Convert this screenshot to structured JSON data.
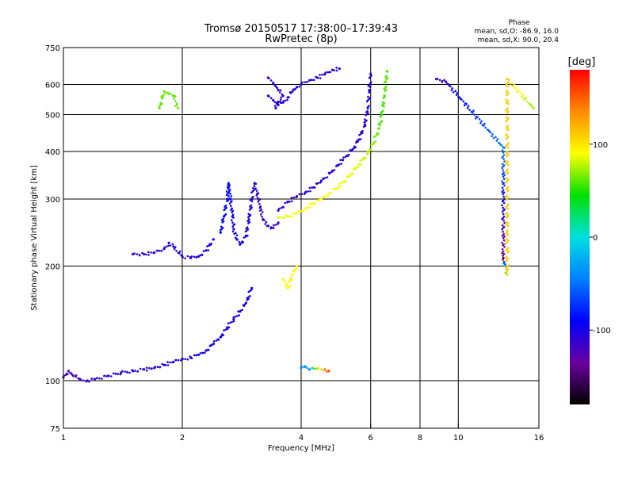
{
  "chart_data": {
    "type": "scatter",
    "title": "Tromsø 20150517 17:38:00–17:39:43",
    "subtitle": "RwPretec (8p)",
    "xlabel": "Frequency [MHz]",
    "ylabel": "Stationary phase Virtual Height [km]",
    "x_scale": "log",
    "y_scale": "log",
    "xlim": [
      1,
      16
    ],
    "ylim": [
      75,
      750
    ],
    "x_ticks": [
      1,
      2,
      4,
      6,
      8,
      10,
      16
    ],
    "x_tick_labels": [
      "1",
      "2",
      "4",
      "6",
      "8",
      "10",
      "16"
    ],
    "y_ticks": [
      75,
      100,
      200,
      300,
      400,
      500,
      600,
      750
    ],
    "y_tick_labels": [
      "75",
      "100",
      "200",
      "300",
      "400",
      "500",
      "600",
      "750"
    ],
    "grid_x": [
      2,
      4,
      6,
      8,
      10,
      16
    ],
    "grid_y": [
      100,
      200,
      300,
      400,
      500,
      600
    ],
    "grid": true,
    "phase_info": {
      "heading": "Phase",
      "line_o": "mean, sd,O: -86.9, 16.0",
      "line_x": "mean, sd,X:  90.0, 20.4"
    },
    "colorbar": {
      "label": "[deg]",
      "min": -180,
      "max": 180,
      "ticks": [
        100,
        0,
        -100
      ],
      "tick_labels": [
        "100",
        "0",
        "-100"
      ],
      "colors": [
        "#ff0000",
        "#ff8c00",
        "#ffff00",
        "#00e000",
        "#00e0e0",
        "#0080ff",
        "#0000ff",
        "#6a00a0",
        "#000000"
      ]
    },
    "series": [
      {
        "points": [
          [
            1.0,
            102,
            -120
          ],
          [
            1.03,
            106,
            -118
          ],
          [
            1.06,
            103,
            -125
          ],
          [
            1.1,
            101,
            -120
          ],
          [
            1.15,
            100,
            -112
          ],
          [
            1.2,
            101,
            -115
          ],
          [
            1.3,
            103,
            -108
          ],
          [
            1.4,
            105,
            -106
          ],
          [
            1.5,
            106,
            -104
          ],
          [
            1.6,
            107,
            -108
          ],
          [
            1.7,
            108,
            -104
          ],
          [
            1.8,
            110,
            -102
          ],
          [
            1.9,
            112,
            -104
          ],
          [
            2.0,
            114,
            -102
          ],
          [
            2.1,
            115,
            -98
          ],
          [
            2.2,
            117,
            -100
          ],
          [
            2.3,
            120,
            -96
          ],
          [
            2.4,
            125,
            -100
          ],
          [
            2.5,
            130,
            -95
          ],
          [
            2.6,
            138,
            -102
          ],
          [
            2.7,
            145,
            -98
          ],
          [
            2.8,
            152,
            -100
          ],
          [
            2.9,
            160,
            -103
          ],
          [
            3.0,
            175,
            -100
          ]
        ]
      },
      {
        "points": [
          [
            1.5,
            215,
            -108
          ],
          [
            1.6,
            215,
            -110
          ],
          [
            1.7,
            217,
            -106
          ],
          [
            1.8,
            222,
            -104
          ],
          [
            1.85,
            230,
            -106
          ],
          [
            1.9,
            225,
            -108
          ],
          [
            2.0,
            212,
            -105
          ],
          [
            2.1,
            210,
            -110
          ],
          [
            2.2,
            212,
            -106
          ],
          [
            2.3,
            220,
            -104
          ],
          [
            2.4,
            235,
            -102
          ]
        ]
      },
      {
        "points": [
          [
            2.5,
            245,
            -90
          ],
          [
            2.55,
            270,
            -88
          ],
          [
            2.6,
            300,
            -86
          ],
          [
            2.62,
            330,
            -85
          ],
          [
            2.65,
            300,
            -92
          ],
          [
            2.68,
            270,
            -95
          ],
          [
            2.7,
            250,
            -96
          ],
          [
            2.75,
            235,
            -94
          ],
          [
            2.8,
            228,
            -95
          ],
          [
            2.9,
            240,
            -100
          ],
          [
            2.95,
            265,
            -102
          ],
          [
            3.0,
            300,
            -104
          ],
          [
            3.05,
            330,
            -108
          ],
          [
            3.1,
            310,
            -104
          ],
          [
            3.15,
            285,
            -110
          ],
          [
            3.2,
            265,
            -112
          ],
          [
            3.3,
            255,
            -110
          ],
          [
            3.4,
            252,
            -112
          ],
          [
            3.5,
            260,
            -110
          ]
        ]
      },
      {
        "points": [
          [
            3.3,
            560,
            -105
          ],
          [
            3.4,
            545,
            -108
          ],
          [
            3.5,
            530,
            -106
          ],
          [
            3.6,
            538,
            -110
          ],
          [
            3.7,
            555,
            -108
          ],
          [
            3.8,
            575,
            -106
          ],
          [
            3.9,
            590,
            -104
          ],
          [
            4.0,
            600,
            -108
          ],
          [
            4.2,
            615,
            -106
          ],
          [
            4.4,
            625,
            -104
          ],
          [
            4.6,
            640,
            -110
          ],
          [
            4.8,
            655,
            -108
          ],
          [
            5.0,
            660,
            -106
          ]
        ]
      },
      {
        "points": [
          [
            3.3,
            625,
            -112
          ],
          [
            3.4,
            605,
            -108
          ],
          [
            3.5,
            580,
            -110
          ],
          [
            3.6,
            560,
            -108
          ],
          [
            3.5,
            540,
            -106
          ],
          [
            3.45,
            520,
            -104
          ]
        ]
      },
      {
        "points": [
          [
            3.5,
            280,
            -108
          ],
          [
            3.7,
            295,
            -110
          ],
          [
            3.9,
            305,
            -112
          ],
          [
            4.1,
            312,
            -108
          ],
          [
            4.3,
            322,
            -110
          ],
          [
            4.5,
            335,
            -106
          ],
          [
            4.8,
            355,
            -108
          ],
          [
            5.1,
            380,
            -106
          ],
          [
            5.4,
            405,
            -104
          ],
          [
            5.6,
            430,
            -108
          ],
          [
            5.8,
            470,
            -110
          ],
          [
            5.9,
            520,
            -106
          ],
          [
            5.95,
            580,
            -104
          ],
          [
            6.0,
            640,
            -108
          ]
        ]
      },
      {
        "points": [
          [
            3.5,
            268,
            85
          ],
          [
            3.7,
            270,
            88
          ],
          [
            3.9,
            275,
            90
          ],
          [
            4.1,
            283,
            92
          ],
          [
            4.3,
            292,
            88
          ],
          [
            4.5,
            300,
            92
          ],
          [
            4.7,
            310,
            90
          ],
          [
            5.0,
            325,
            88
          ],
          [
            5.3,
            345,
            86
          ],
          [
            5.6,
            370,
            84
          ],
          [
            5.9,
            395,
            78
          ],
          [
            6.1,
            420,
            70
          ],
          [
            6.3,
            460,
            60
          ],
          [
            6.4,
            500,
            55
          ],
          [
            6.5,
            560,
            58
          ],
          [
            6.55,
            610,
            62
          ],
          [
            6.6,
            650,
            56
          ]
        ]
      },
      {
        "points": [
          [
            3.6,
            185,
            90
          ],
          [
            3.7,
            175,
            92
          ],
          [
            3.8,
            190,
            95
          ],
          [
            3.9,
            200,
            88
          ]
        ]
      },
      {
        "points": [
          [
            4.0,
            108,
            -40
          ],
          [
            4.1,
            109,
            -36
          ],
          [
            4.2,
            107,
            -38
          ],
          [
            4.4,
            108,
            90
          ],
          [
            4.6,
            107,
            140
          ],
          [
            4.7,
            106,
            160
          ]
        ]
      },
      {
        "points": [
          [
            1.75,
            520,
            60
          ],
          [
            1.8,
            575,
            65
          ],
          [
            1.9,
            560,
            58
          ],
          [
            1.95,
            520,
            62
          ]
        ]
      },
      {
        "points": [
          [
            8.8,
            620,
            -110
          ],
          [
            9.3,
            610,
            -108
          ],
          [
            13.0,
            410,
            -40
          ],
          [
            13.0,
            210,
            -150
          ],
          [
            13.3,
            190,
            110
          ],
          [
            13.3,
            620,
            110
          ],
          [
            15.5,
            520,
            70
          ]
        ]
      }
    ]
  }
}
